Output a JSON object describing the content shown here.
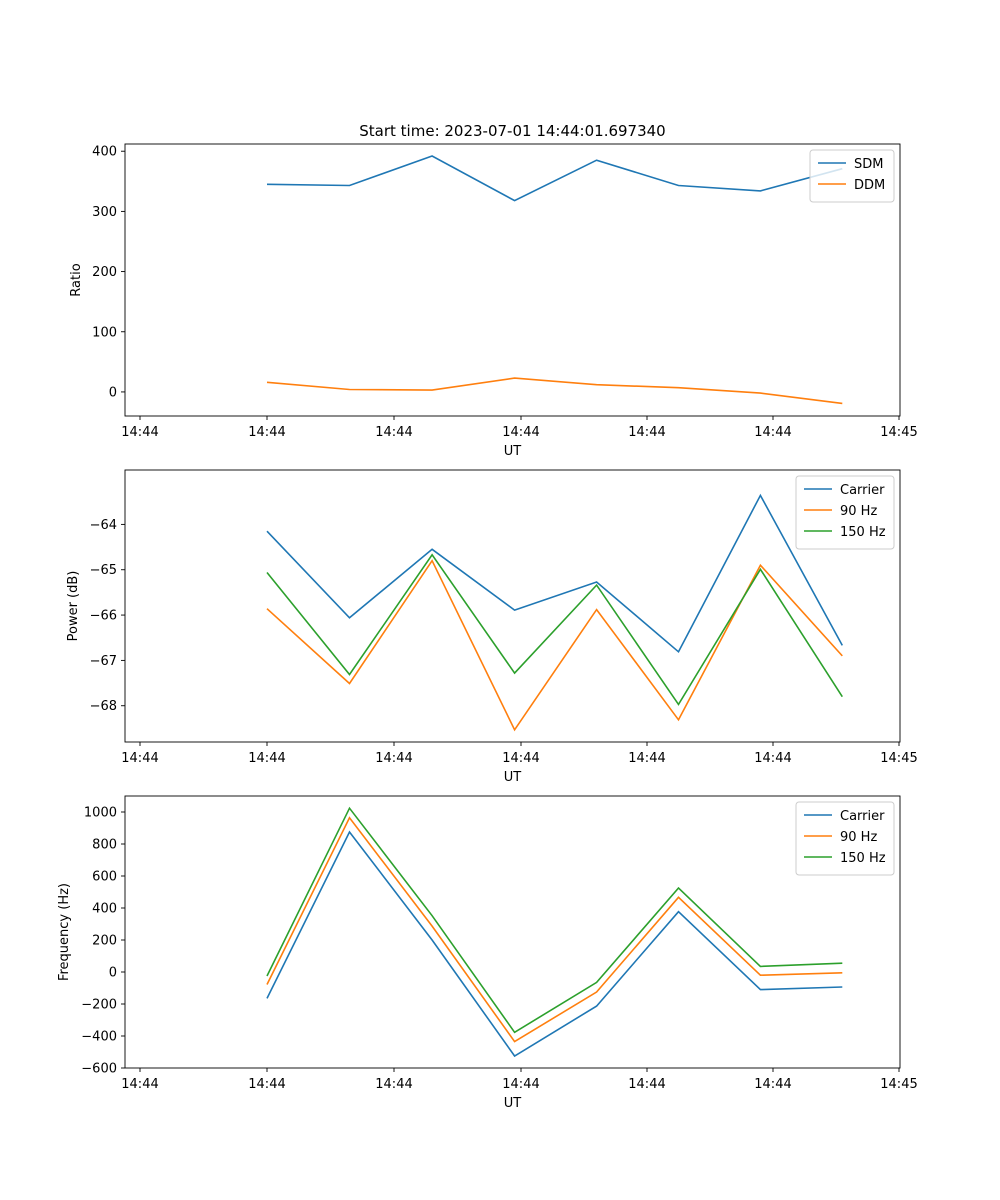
{
  "title": "Start time: 2023-07-01 14:44:01.697340",
  "colors": {
    "blue": "#1f77b4",
    "orange": "#ff7f0e",
    "green": "#2ca02c"
  },
  "chart_data": [
    {
      "type": "line",
      "xlabel": "UT",
      "ylabel": "Ratio",
      "x": [
        1.0,
        1.65,
        2.3,
        2.95,
        3.6,
        4.25,
        4.9,
        5.55
      ],
      "xlim": [
        0,
        6
      ],
      "xticks": [
        0,
        1,
        2,
        3,
        4,
        5,
        6
      ],
      "xtick_labels": [
        "14:44",
        "14:44",
        "14:44",
        "14:44",
        "14:44",
        "14:44",
        "14:45"
      ],
      "ylim": [
        -40,
        412
      ],
      "yticks": [
        0,
        100,
        200,
        300,
        400
      ],
      "legend": "top-right",
      "series": [
        {
          "name": "SDM",
          "color": "#1f77b4",
          "values": [
            345,
            343,
            392,
            318,
            385,
            343,
            334,
            371
          ]
        },
        {
          "name": "DDM",
          "color": "#ff7f0e",
          "values": [
            16,
            4,
            3,
            23,
            12,
            7,
            -2,
            -19
          ]
        }
      ]
    },
    {
      "type": "line",
      "xlabel": "UT",
      "ylabel": "Power (dB)",
      "x": [
        1.0,
        1.65,
        2.3,
        2.95,
        3.6,
        4.25,
        4.9,
        5.55
      ],
      "xlim": [
        0,
        6
      ],
      "xticks": [
        0,
        1,
        2,
        3,
        4,
        5,
        6
      ],
      "xtick_labels": [
        "14:44",
        "14:44",
        "14:44",
        "14:44",
        "14:44",
        "14:44",
        "14:45"
      ],
      "ylim": [
        -68.8,
        -62.8
      ],
      "yticks": [
        -68,
        -67,
        -66,
        -65,
        -64
      ],
      "legend": "top-right",
      "series": [
        {
          "name": "Carrier",
          "color": "#1f77b4",
          "values": [
            -64.15,
            -66.06,
            -64.55,
            -65.89,
            -65.27,
            -66.81,
            -63.36,
            -66.67
          ]
        },
        {
          "name": "90 Hz",
          "color": "#ff7f0e",
          "values": [
            -65.86,
            -67.51,
            -64.8,
            -68.53,
            -65.88,
            -68.31,
            -64.9,
            -66.9
          ]
        },
        {
          "name": "150 Hz",
          "color": "#2ca02c",
          "values": [
            -65.06,
            -67.31,
            -64.67,
            -67.28,
            -65.34,
            -67.97,
            -64.99,
            -67.8
          ]
        }
      ]
    },
    {
      "type": "line",
      "xlabel": "UT",
      "ylabel": "Frequency (Hz)",
      "x": [
        1.0,
        1.65,
        2.3,
        2.95,
        3.6,
        4.25,
        4.9,
        5.55
      ],
      "xlim": [
        0,
        6
      ],
      "xticks": [
        0,
        1,
        2,
        3,
        4,
        5,
        6
      ],
      "xtick_labels": [
        "14:44",
        "14:44",
        "14:44",
        "14:44",
        "14:44",
        "14:44",
        "14:45"
      ],
      "ylim": [
        -600,
        1100
      ],
      "yticks": [
        -600,
        -400,
        -200,
        0,
        200,
        400,
        600,
        800,
        1000
      ],
      "legend": "top-right",
      "series": [
        {
          "name": "Carrier",
          "color": "#1f77b4",
          "values": [
            -165,
            875,
            200,
            -525,
            -213,
            377,
            -110,
            -94
          ]
        },
        {
          "name": "90 Hz",
          "color": "#ff7f0e",
          "values": [
            -78,
            964,
            287,
            -435,
            -125,
            467,
            -20,
            -5
          ]
        },
        {
          "name": "150 Hz",
          "color": "#2ca02c",
          "values": [
            -25,
            1024,
            352,
            -377,
            -65,
            525,
            35,
            55
          ]
        }
      ]
    }
  ]
}
